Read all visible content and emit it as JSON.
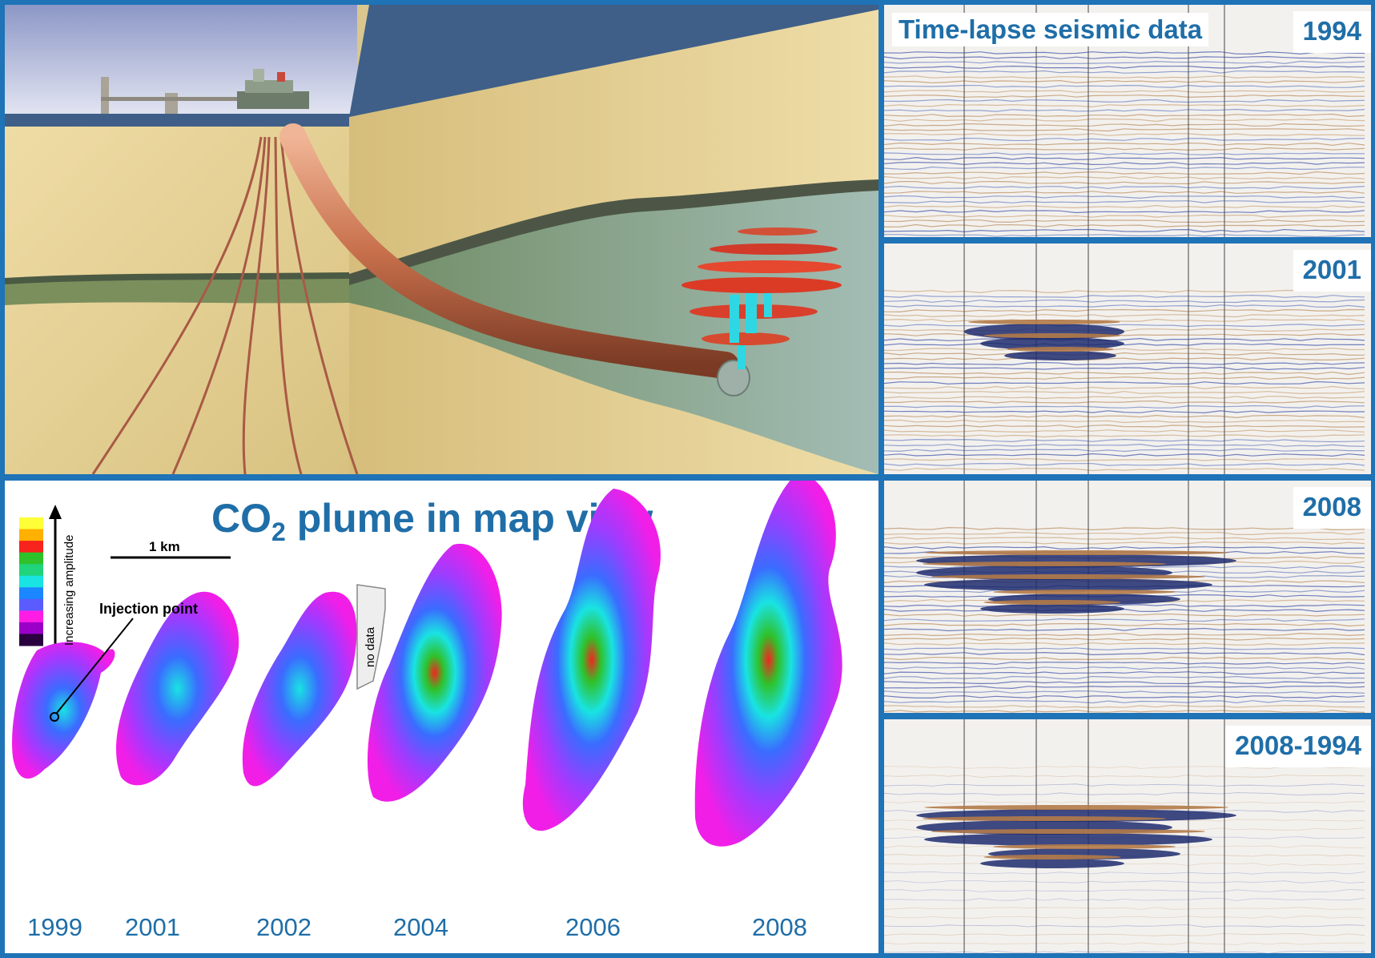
{
  "seismic": {
    "title": "Time-lapse seismic data",
    "panels": [
      {
        "year": "1994"
      },
      {
        "year": "2001"
      },
      {
        "year": "2008"
      },
      {
        "year": "2008-1994"
      }
    ]
  },
  "map": {
    "title_prefix": "CO",
    "title_sub": "2",
    "title_suffix": " plume in map view",
    "scale_label": "1 km",
    "injection_label": "Injection point",
    "amplitude_label": "Increasing amplitude",
    "no_data_label": "no data",
    "years": [
      "1999",
      "2001",
      "2002",
      "2004",
      "2006",
      "2008"
    ],
    "colorbar": [
      "#2a003e",
      "#9a00c8",
      "#ff1de6",
      "#5a5cff",
      "#1a86ff",
      "#19e3e3",
      "#1fd47a",
      "#2fc12a",
      "#f7231c",
      "#ffb000",
      "#ffff38"
    ]
  },
  "colors": {
    "accent": "#1f6ea8",
    "border": "#1f73b7"
  }
}
